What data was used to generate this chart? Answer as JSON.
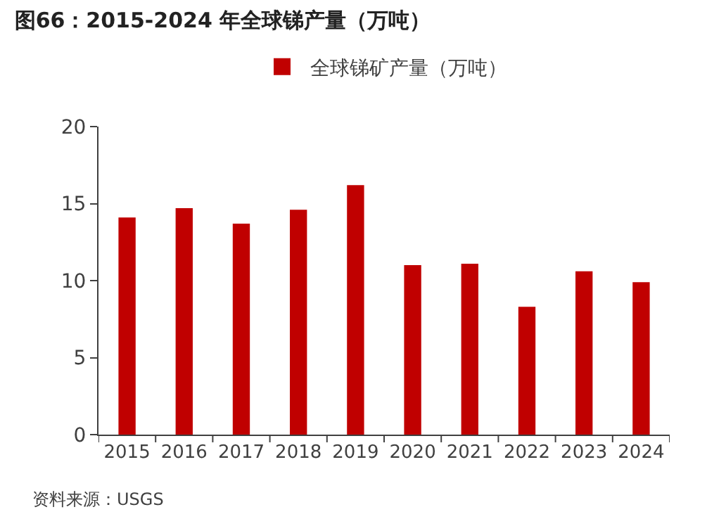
{
  "chart_data": {
    "type": "bar",
    "title": "图66：2015-2024 年全球锑产量（万吨）",
    "categories": [
      "2015",
      "2016",
      "2017",
      "2018",
      "2019",
      "2020",
      "2021",
      "2022",
      "2023",
      "2024"
    ],
    "series": [
      {
        "name": "全球锑矿产量（万吨）",
        "color": "#c00000",
        "values": [
          14.1,
          14.7,
          13.7,
          14.6,
          16.2,
          11.0,
          11.1,
          8.3,
          10.6,
          9.9
        ]
      }
    ],
    "ylim": [
      0,
      20
    ],
    "yticks": [
      0,
      5,
      10,
      15,
      20
    ],
    "legend": "top",
    "annotations": [
      "资料来源：USGS"
    ]
  }
}
